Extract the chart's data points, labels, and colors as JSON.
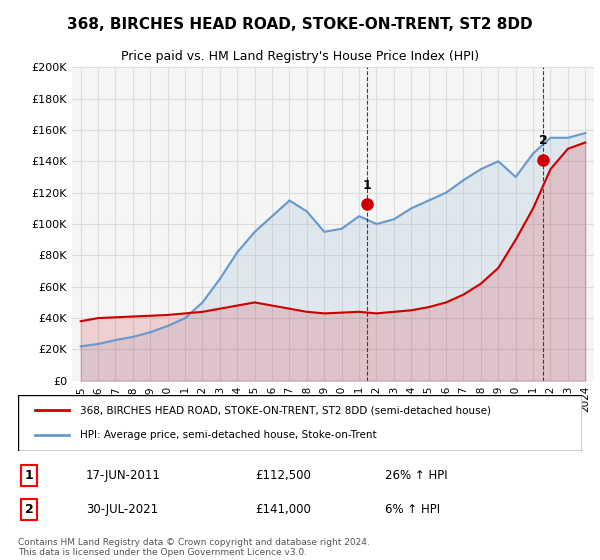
{
  "title": "368, BIRCHES HEAD ROAD, STOKE-ON-TRENT, ST2 8DD",
  "subtitle": "Price paid vs. HM Land Registry's House Price Index (HPI)",
  "ylabel_ticks": [
    "£0",
    "£20K",
    "£40K",
    "£60K",
    "£80K",
    "£100K",
    "£120K",
    "£140K",
    "£160K",
    "£180K",
    "£200K"
  ],
  "ylim": [
    0,
    200000
  ],
  "ytick_values": [
    0,
    20000,
    40000,
    60000,
    80000,
    100000,
    120000,
    140000,
    160000,
    180000,
    200000
  ],
  "legend_line1": "368, BIRCHES HEAD ROAD, STOKE-ON-TRENT, ST2 8DD (semi-detached house)",
  "legend_line2": "HPI: Average price, semi-detached house, Stoke-on-Trent",
  "sale1_date": "17-JUN-2011",
  "sale1_price": "£112,500",
  "sale1_hpi": "26% ↑ HPI",
  "sale2_date": "30-JUL-2021",
  "sale2_price": "£141,000",
  "sale2_hpi": "6% ↑ HPI",
  "footnote": "Contains HM Land Registry data © Crown copyright and database right 2024.\nThis data is licensed under the Open Government Licence v3.0.",
  "red_color": "#cc0000",
  "blue_color": "#6699cc",
  "sale_marker_color": "#cc0000",
  "vline_color": "#cc0000",
  "grid_color": "#dddddd",
  "background_color": "#ffffff",
  "plot_bg_color": "#f5f5f5",
  "hpi_years": [
    1995,
    1996,
    1997,
    1998,
    1999,
    2000,
    2001,
    2002,
    2003,
    2004,
    2005,
    2006,
    2007,
    2008,
    2009,
    2010,
    2011,
    2012,
    2013,
    2014,
    2015,
    2016,
    2017,
    2018,
    2019,
    2020,
    2021,
    2022,
    2023,
    2024
  ],
  "hpi_values": [
    22000,
    23500,
    26000,
    28000,
    31000,
    35000,
    40000,
    50000,
    65000,
    82000,
    95000,
    105000,
    115000,
    108000,
    95000,
    97000,
    105000,
    100000,
    103000,
    110000,
    115000,
    120000,
    128000,
    135000,
    140000,
    130000,
    145000,
    155000,
    155000,
    158000
  ],
  "price_years": [
    1995,
    1996,
    1997,
    1998,
    1999,
    2000,
    2001,
    2002,
    2003,
    2004,
    2005,
    2006,
    2007,
    2008,
    2009,
    2010,
    2011,
    2012,
    2013,
    2014,
    2015,
    2016,
    2017,
    2018,
    2019,
    2020,
    2021,
    2022,
    2023,
    2024
  ],
  "price_values": [
    38000,
    40000,
    40500,
    41000,
    41500,
    42000,
    43000,
    44000,
    46000,
    48000,
    50000,
    48000,
    46000,
    44000,
    43000,
    43500,
    44000,
    43000,
    44000,
    45000,
    47000,
    50000,
    55000,
    62000,
    72000,
    90000,
    110000,
    135000,
    148000,
    152000
  ],
  "sale1_x": 2011.46,
  "sale1_y": 112500,
  "sale2_x": 2021.58,
  "sale2_y": 141000,
  "xtick_years": [
    1995,
    1996,
    1997,
    1998,
    1999,
    2000,
    2001,
    2002,
    2003,
    2004,
    2005,
    2006,
    2007,
    2008,
    2009,
    2010,
    2011,
    2012,
    2013,
    2014,
    2015,
    2016,
    2017,
    2018,
    2019,
    2020,
    2021,
    2022,
    2023,
    2024
  ],
  "xlim": [
    1994.5,
    2024.5
  ]
}
